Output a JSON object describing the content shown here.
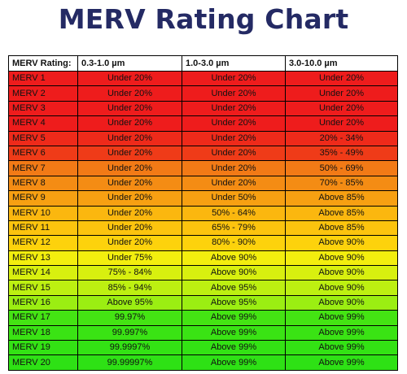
{
  "title": "MERV Rating Chart",
  "headers": [
    "MERV Rating:",
    "0.3-1.0 µm",
    "1.0-3.0 µm",
    "3.0-10.0 µm"
  ],
  "rows": [
    {
      "rating": "MERV 1",
      "c1": "Under 20%",
      "c2": "Under 20%",
      "c3": "Under 20%",
      "color": "#ee1c1c"
    },
    {
      "rating": "MERV 2",
      "c1": "Under 20%",
      "c2": "Under 20%",
      "c3": "Under 20%",
      "color": "#ee1c1c"
    },
    {
      "rating": "MERV 3",
      "c1": "Under 20%",
      "c2": "Under 20%",
      "c3": "Under 20%",
      "color": "#ee1c1c"
    },
    {
      "rating": "MERV 4",
      "c1": "Under 20%",
      "c2": "Under 20%",
      "c3": "Under 20%",
      "color": "#ee1c1c"
    },
    {
      "rating": "MERV 5",
      "c1": "Under 20%",
      "c2": "Under 20%",
      "c3": "20% - 34%",
      "color": "#ee2a1a"
    },
    {
      "rating": "MERV 6",
      "c1": "Under 20%",
      "c2": "Under 20%",
      "c3": "35% - 49%",
      "color": "#ef3b18"
    },
    {
      "rating": "MERV 7",
      "c1": "Under 20%",
      "c2": "Under 20%",
      "c3": "50% - 69%",
      "color": "#f27a16"
    },
    {
      "rating": "MERV 8",
      "c1": "Under 20%",
      "c2": "Under 20%",
      "c3": "70% - 85%",
      "color": "#f48c14"
    },
    {
      "rating": "MERV 9",
      "c1": "Under 20%",
      "c2": "Under 50%",
      "c3": "Above 85%",
      "color": "#f7a012"
    },
    {
      "rating": "MERV 10",
      "c1": "Under 20%",
      "c2": "50% - 64%",
      "c3": "Above 85%",
      "color": "#fbb70f"
    },
    {
      "rating": "MERV 11",
      "c1": "Under 20%",
      "c2": "65% - 79%",
      "c3": "Above 85%",
      "color": "#fcc40e"
    },
    {
      "rating": "MERV 12",
      "c1": "Under 20%",
      "c2": "80% - 90%",
      "c3": "Above 90%",
      "color": "#fdd20c"
    },
    {
      "rating": "MERV 13",
      "c1": "Under 75%",
      "c2": "Above 90%",
      "c3": "Above 90%",
      "color": "#f3ee0e"
    },
    {
      "rating": "MERV 14",
      "c1": "75% - 84%",
      "c2": "Above 90%",
      "c3": "Above 90%",
      "color": "#d8f00f"
    },
    {
      "rating": "MERV 15",
      "c1": "85% - 94%",
      "c2": "Above 95%",
      "c3": "Above 90%",
      "color": "#bdf011"
    },
    {
      "rating": "MERV 16",
      "c1": "Above 95%",
      "c2": "Above 95%",
      "c3": "Above 90%",
      "color": "#9bee12"
    },
    {
      "rating": "MERV 17",
      "c1": "99.97%",
      "c2": "Above 99%",
      "c3": "Above 99%",
      "color": "#44e413"
    },
    {
      "rating": "MERV 18",
      "c1": "99.997%",
      "c2": "Above 99%",
      "c3": "Above 99%",
      "color": "#3ae314"
    },
    {
      "rating": "MERV 19",
      "c1": "99.9997%",
      "c2": "Above 99%",
      "c3": "Above 99%",
      "color": "#33e214"
    },
    {
      "rating": "MERV 20",
      "c1": "99.99997%",
      "c2": "Above 99%",
      "c3": "Above 99%",
      "color": "#2ee115"
    }
  ]
}
